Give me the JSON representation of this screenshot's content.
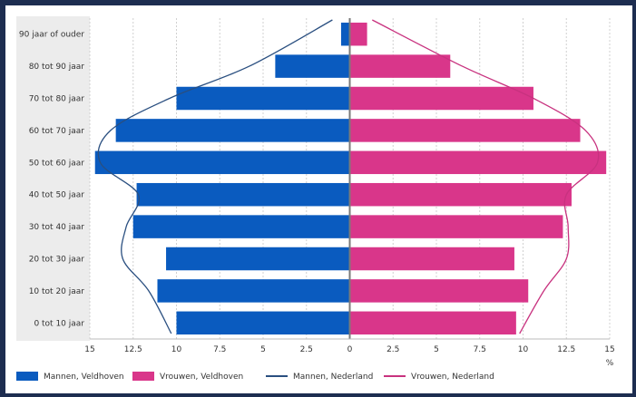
{
  "chart_data": {
    "type": "bar",
    "orientation": "horizontal",
    "layout": "population-pyramid",
    "categories": [
      "0 tot 10 jaar",
      "10 tot 20 jaar",
      "20 tot 30 jaar",
      "30 tot 40 jaar",
      "40 tot 50 jaar",
      "50 tot 60 jaar",
      "60 tot 70 jaar",
      "70 tot 80 jaar",
      "80 tot 90 jaar",
      "90 jaar of ouder"
    ],
    "series": [
      {
        "name": "Mannen, Veldhoven",
        "kind": "bar",
        "side": "left",
        "color": "#0a5bbf",
        "values": [
          10.0,
          11.1,
          10.6,
          12.5,
          12.3,
          14.7,
          13.5,
          10.0,
          4.3,
          0.5
        ]
      },
      {
        "name": "Vrouwen, Veldhoven",
        "kind": "bar",
        "side": "right",
        "color": "#d9368a",
        "values": [
          9.6,
          10.3,
          9.5,
          12.3,
          12.8,
          14.8,
          13.3,
          10.6,
          5.8,
          1.0
        ]
      },
      {
        "name": "Mannen, Nederland",
        "kind": "line",
        "side": "left",
        "color": "#2a4f80",
        "values": [
          10.3,
          11.6,
          13.1,
          12.9,
          12.2,
          14.4,
          13.8,
          10.4,
          5.8,
          1.0
        ]
      },
      {
        "name": "Vrouwen, Nederland",
        "kind": "line",
        "side": "right",
        "color": "#c8327f",
        "values": [
          9.8,
          11.2,
          12.5,
          12.6,
          12.5,
          14.3,
          13.6,
          10.6,
          6.5,
          1.3
        ]
      }
    ],
    "x_ticks": [
      "15",
      "12.5",
      "10",
      "7.5",
      "5",
      "2.5",
      "0",
      "2.5",
      "5",
      "7.5",
      "10",
      "12.5",
      "15"
    ],
    "x_unit_label": "%",
    "xlim": [
      -15,
      15
    ],
    "grid": true,
    "legend_position": "bottom"
  }
}
